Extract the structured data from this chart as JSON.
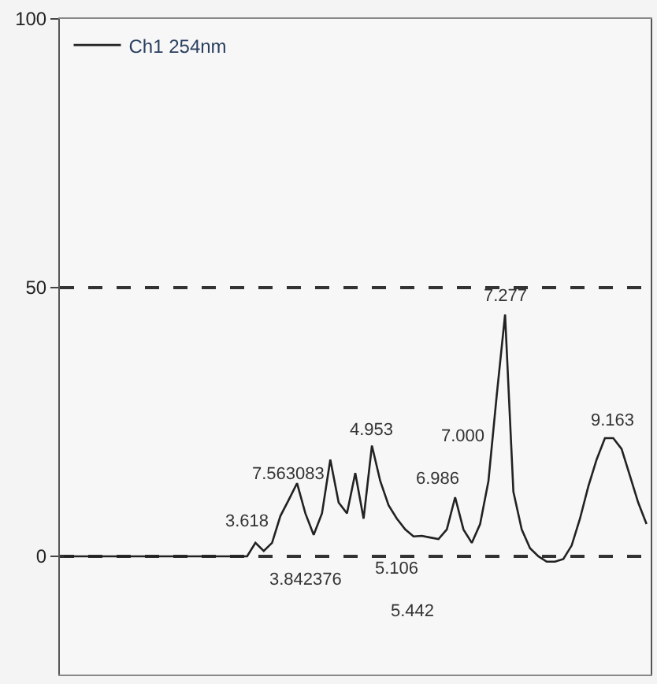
{
  "chart_data": {
    "type": "line",
    "ylim": [
      -22,
      100
    ],
    "yticks": [
      0,
      50,
      100
    ],
    "tick_labels": "y",
    "grid": "y",
    "line_style": "solid",
    "legend": "top left",
    "categories": [
      null,
      null,
      null,
      null,
      null,
      null,
      null,
      null,
      null,
      null,
      null,
      null,
      null,
      null,
      null,
      null,
      null,
      null,
      null,
      null,
      null,
      null,
      null,
      null,
      null,
      null,
      null,
      null,
      null,
      null,
      null,
      null,
      null,
      null,
      null,
      null,
      null,
      null,
      null,
      null,
      null,
      null,
      null,
      null,
      null,
      null,
      null,
      null,
      null,
      null,
      null,
      null,
      null,
      null,
      null,
      null,
      null,
      null,
      null,
      null,
      null,
      null,
      null,
      null,
      null,
      null,
      null,
      null,
      null,
      null,
      null
    ],
    "series": [
      {
        "name": "Ch1 254nm",
        "color": "#222222",
        "values": [
          0,
          0,
          0,
          0,
          0,
          0,
          0,
          0,
          0,
          0,
          0,
          0,
          0,
          0,
          0,
          0,
          0,
          0,
          0,
          0,
          0,
          0,
          0,
          2.5,
          1,
          2.5,
          7.5,
          10.5,
          13.6,
          8,
          4,
          8,
          18,
          10,
          8,
          15.5,
          7,
          20.6,
          14,
          9.5,
          7,
          5,
          3.7,
          3.8,
          3.5,
          3.2,
          5,
          11,
          5,
          2.5,
          6,
          14,
          30,
          45,
          12,
          5,
          1.5,
          0,
          -1,
          -1,
          -0.5,
          2,
          7,
          13,
          18,
          22,
          22,
          20,
          15,
          10,
          6
        ]
      }
    ],
    "annotations": [
      "3.618",
      "7.563083",
      "3.842376",
      "4.953",
      "5.106",
      "5.442",
      "6.986",
      "7.000",
      "7.277",
      "9.163"
    ]
  }
}
